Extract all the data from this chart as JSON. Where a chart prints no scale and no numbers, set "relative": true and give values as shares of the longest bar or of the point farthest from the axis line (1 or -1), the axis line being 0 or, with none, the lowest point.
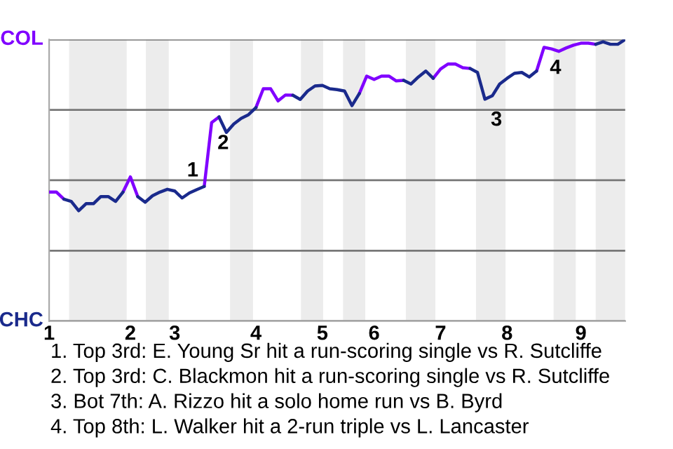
{
  "chart_data": {
    "type": "line",
    "relative": true,
    "categories": [
      "1",
      null,
      null,
      null,
      null,
      null,
      null,
      null,
      null,
      null,
      null,
      "2",
      null,
      null,
      null,
      null,
      null,
      "3",
      null,
      null,
      null,
      null,
      null,
      null,
      null,
      null,
      null,
      null,
      "4",
      null,
      null,
      null,
      null,
      null,
      null,
      null,
      null,
      "5",
      null,
      null,
      null,
      null,
      null,
      null,
      "6",
      null,
      null,
      null,
      null,
      null,
      null,
      null,
      null,
      "7",
      null,
      null,
      null,
      null,
      null,
      null,
      null,
      null,
      "8",
      null,
      null,
      null,
      null,
      null,
      null,
      null,
      null,
      null,
      "9",
      null,
      null,
      null,
      null,
      null,
      null
    ],
    "series": [
      {
        "name": "COL",
        "color": "#8000ff",
        "values": [
          0.458,
          0.458,
          0.433,
          null,
          null,
          null,
          null,
          null,
          null,
          null,
          0.458,
          0.512,
          0.442,
          null,
          null,
          null,
          null,
          null,
          null,
          null,
          null,
          0.478,
          0.705,
          0.725,
          null,
          null,
          null,
          null,
          0.758,
          0.825,
          0.825,
          0.782,
          0.803,
          0.802,
          null,
          null,
          null,
          null,
          null,
          null,
          null,
          null,
          0.808,
          0.87,
          0.858,
          0.87,
          0.87,
          0.853,
          0.855,
          null,
          null,
          null,
          0.862,
          0.895,
          0.913,
          0.913,
          0.9,
          0.897,
          null,
          null,
          null,
          null,
          null,
          null,
          null,
          null,
          0.888,
          0.972,
          0.967,
          0.958,
          0.97,
          0.98,
          0.987,
          0.987,
          0.983,
          null,
          null,
          null,
          null
        ]
      },
      {
        "name": "CHC",
        "color": "#1a2a8c",
        "values": [
          null,
          null,
          0.433,
          0.425,
          0.392,
          0.417,
          0.417,
          0.442,
          0.442,
          0.425,
          0.458,
          null,
          0.442,
          0.422,
          0.445,
          0.458,
          0.468,
          0.462,
          0.437,
          0.455,
          0.467,
          0.478,
          null,
          0.725,
          0.67,
          0.7,
          0.72,
          0.733,
          0.758,
          null,
          null,
          null,
          null,
          0.802,
          0.787,
          0.817,
          0.835,
          0.837,
          0.825,
          0.822,
          0.817,
          0.765,
          0.808,
          null,
          null,
          null,
          null,
          null,
          0.855,
          0.842,
          0.867,
          0.888,
          0.862,
          null,
          null,
          null,
          null,
          0.897,
          0.883,
          0.788,
          0.8,
          0.842,
          0.862,
          0.88,
          0.883,
          0.867,
          0.888,
          null,
          null,
          null,
          null,
          null,
          null,
          null,
          0.983,
          0.992,
          0.983,
          0.983,
          1
        ]
      }
    ],
    "grid": "y",
    "annotations": [
      {
        "text": "1",
        "y": 0.478
      },
      {
        "text": "2",
        "y": 0.705
      },
      {
        "text": "3",
        "y": 0.788
      },
      {
        "text": "4",
        "y": 0.972
      },
      "1. Top 3rd: E. Young Sr hit a run-scoring single vs R. Sutcliffe",
      "2. Top 3rd: C. Blackmon hit a run-scoring single vs R. Sutcliffe",
      "3. Bot 7th: A. Rizzo hit a solo home run vs B. Byrd",
      "4. Top 8th: L. Walker hit a 2-run triple vs L. Lancaster"
    ],
    "marker": "none",
    "line_style": "solid",
    "legend": false
  }
}
